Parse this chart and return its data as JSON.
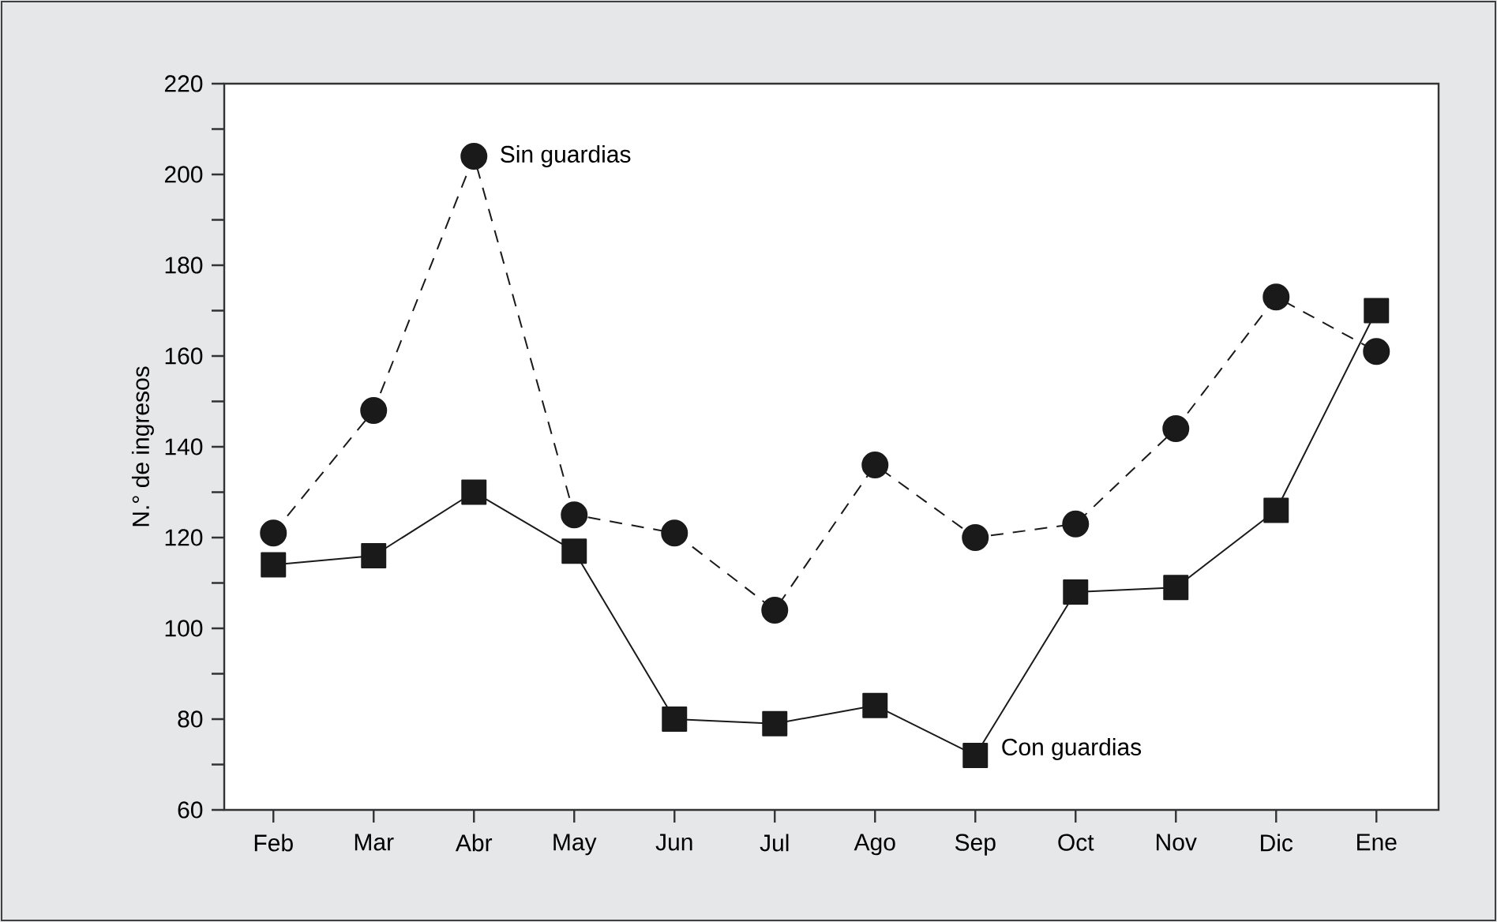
{
  "chart_data": {
    "type": "line",
    "ylabel": "N.° de ingresos",
    "categories": [
      "Feb",
      "Mar",
      "Abr",
      "May",
      "Jun",
      "Jul",
      "Ago",
      "Sep",
      "Oct",
      "Nov",
      "Dic",
      "Ene"
    ],
    "series": [
      {
        "name": "Sin guardias",
        "color": "#1a1a1a",
        "marker": "circle",
        "line_style": "dashed",
        "values": [
          121,
          148,
          204,
          125,
          121,
          104,
          136,
          120,
          123,
          144,
          173,
          161
        ]
      },
      {
        "name": "Con guardias",
        "color": "#1a1a1a",
        "marker": "square",
        "line_style": "solid",
        "values": [
          114,
          116,
          130,
          117,
          80,
          79,
          83,
          72,
          108,
          109,
          126,
          170
        ]
      }
    ],
    "ylim": [
      60,
      220
    ],
    "yticks": [
      60,
      80,
      100,
      120,
      140,
      160,
      180,
      200,
      220
    ],
    "grid": false,
    "legend": false
  }
}
